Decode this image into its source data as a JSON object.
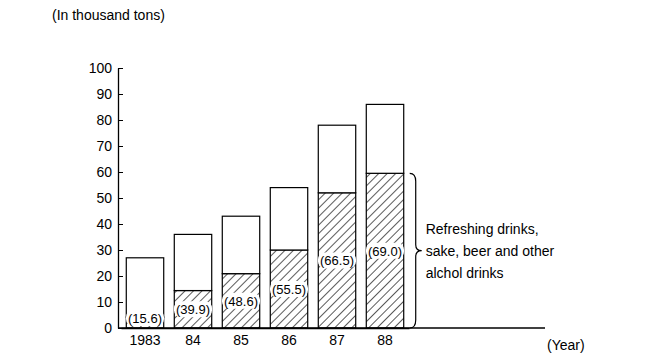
{
  "chart_data": {
    "type": "bar",
    "stacked": true,
    "categories": [
      "1983",
      "84",
      "85",
      "86",
      "87",
      "88"
    ],
    "series": [
      {
        "name": "Refreshing drinks, sake, beer and other alchol drinks",
        "color": "#000000",
        "values": [
          4.2,
          14.4,
          20.9,
          30,
          52,
          59.5
        ],
        "share_labels": [
          "(15.6)",
          "(39.9)",
          "(48.6)",
          "(55.5)",
          "(66.5)",
          "(69.0)"
        ]
      },
      {
        "color": "#ffffff",
        "values": [
          22.8,
          21.6,
          22.1,
          24,
          26,
          26.5
        ]
      }
    ],
    "x_label": "(Year)",
    "y_label": "(In thousand tons)",
    "ylim": [
      0,
      100
    ],
    "yticks": [
      0,
      10,
      20,
      30,
      40,
      50,
      60,
      70,
      80,
      90,
      100
    ],
    "legend": "right"
  }
}
